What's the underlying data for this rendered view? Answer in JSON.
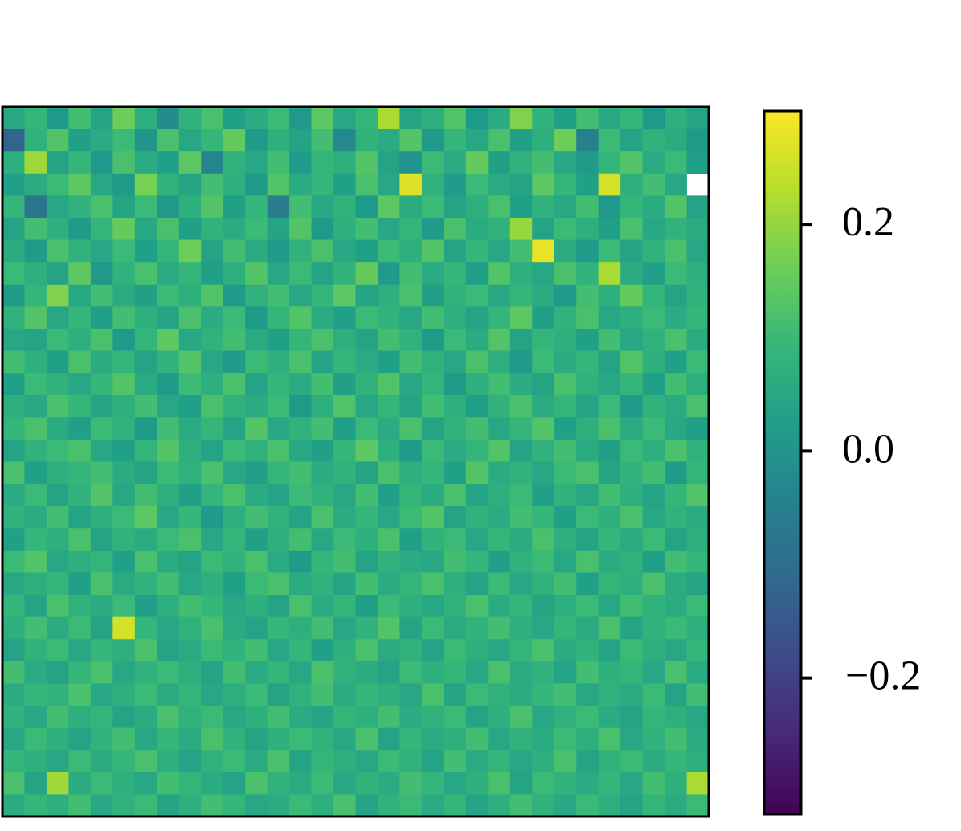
{
  "chart_data": {
    "type": "heatmap",
    "colormap": "viridis",
    "clim": [
      -0.32,
      0.3
    ],
    "colorbar_ticks": [
      0.2,
      {
        "value": 0,
        "label": "0.0"
      },
      {
        "value": -0.2,
        "label": "−0.2"
      }
    ],
    "values": [
      [
        0.05,
        0.09,
        0.02,
        0.11,
        0.04,
        0.16,
        0.07,
        -0.02,
        0.08,
        0.12,
        0.03,
        0.06,
        0.1,
        0.01,
        0.14,
        0.05,
        0.09,
        0.22,
        0.04,
        0.07,
        0.13,
        0.02,
        0.06,
        0.18,
        0.08,
        0.03,
        0.11,
        0.05,
        0.09,
        0.01,
        0.07,
        0.04
      ],
      [
        -0.12,
        0.08,
        0.13,
        0.03,
        0.06,
        0.1,
        0.0,
        0.12,
        0.05,
        0.09,
        0.15,
        0.02,
        0.07,
        0.04,
        0.11,
        -0.03,
        0.08,
        0.06,
        0.13,
        0.01,
        0.09,
        0.05,
        0.12,
        0.03,
        0.07,
        0.16,
        -0.05,
        0.1,
        0.04,
        0.08,
        0.06,
        0.02
      ],
      [
        0.07,
        0.21,
        0.04,
        0.09,
        0.01,
        0.12,
        0.06,
        0.03,
        0.14,
        -0.04,
        0.08,
        0.05,
        0.11,
        0.02,
        0.09,
        0.07,
        0.13,
        0.04,
        0.0,
        0.1,
        0.06,
        0.15,
        0.03,
        0.08,
        0.11,
        0.05,
        0.02,
        0.09,
        0.13,
        0.06,
        0.1,
        0.03
      ],
      [
        0.03,
        0.06,
        0.1,
        0.14,
        0.05,
        0.02,
        0.17,
        0.08,
        0.04,
        0.11,
        0.07,
        0.01,
        0.13,
        0.06,
        0.09,
        0.03,
        0.12,
        0.05,
        0.27,
        0.08,
        0.02,
        0.1,
        0.06,
        0.04,
        0.14,
        0.09,
        0.03,
        0.26,
        0.07,
        0.11,
        0.05,
        null
      ],
      [
        0.09,
        -0.08,
        0.05,
        0.08,
        0.12,
        0.04,
        0.1,
        0.01,
        0.07,
        0.13,
        0.03,
        0.09,
        -0.06,
        0.11,
        0.05,
        0.08,
        0.02,
        0.14,
        0.06,
        0.1,
        0.04,
        0.07,
        0.12,
        0.03,
        0.08,
        0.05,
        0.11,
        0.01,
        0.09,
        0.06,
        0.13,
        0.04
      ],
      [
        0.04,
        0.11,
        0.07,
        0.02,
        0.09,
        0.15,
        0.05,
        0.12,
        0.03,
        0.08,
        0.06,
        0.1,
        0.04,
        0.13,
        0.01,
        0.07,
        0.11,
        0.05,
        0.09,
        0.02,
        0.12,
        0.06,
        0.08,
        0.2,
        0.04,
        0.1,
        0.07,
        0.03,
        0.12,
        0.05,
        0.08,
        0.06
      ],
      [
        0.06,
        0.02,
        0.12,
        0.08,
        0.05,
        0.1,
        0.03,
        0.09,
        0.16,
        0.04,
        0.11,
        0.06,
        0.02,
        0.08,
        0.12,
        0.05,
        0.03,
        0.1,
        0.07,
        0.13,
        0.04,
        0.09,
        0.05,
        0.11,
        0.28,
        0.06,
        0.02,
        0.1,
        0.04,
        0.08,
        0.12,
        0.05
      ],
      [
        0.1,
        0.07,
        0.04,
        0.14,
        0.01,
        0.08,
        0.12,
        0.06,
        0.09,
        0.03,
        0.07,
        0.13,
        0.05,
        0.1,
        0.04,
        0.08,
        0.15,
        0.02,
        0.11,
        0.06,
        0.09,
        0.03,
        0.13,
        0.07,
        0.05,
        0.12,
        0.08,
        0.22,
        0.06,
        0.03,
        0.1,
        0.07
      ],
      [
        0.02,
        0.09,
        0.18,
        0.05,
        0.11,
        0.06,
        0.03,
        0.1,
        0.07,
        0.13,
        0.02,
        0.08,
        0.11,
        0.05,
        0.09,
        0.14,
        0.04,
        0.07,
        0.12,
        0.03,
        0.08,
        0.1,
        0.05,
        0.09,
        0.06,
        0.02,
        0.11,
        0.07,
        0.15,
        0.09,
        0.04,
        0.08
      ],
      [
        0.08,
        0.13,
        0.05,
        0.09,
        0.03,
        0.11,
        0.07,
        0.04,
        0.12,
        0.06,
        0.1,
        0.02,
        0.09,
        0.13,
        0.06,
        0.03,
        0.1,
        0.08,
        0.05,
        0.11,
        0.07,
        0.04,
        0.09,
        0.14,
        0.03,
        0.08,
        0.12,
        0.05,
        0.07,
        0.1,
        0.06,
        0.09
      ],
      [
        0.05,
        0.04,
        0.1,
        0.07,
        0.12,
        0.02,
        0.09,
        0.14,
        0.05,
        0.08,
        0.11,
        0.06,
        0.03,
        0.09,
        0.12,
        0.07,
        0.04,
        0.11,
        0.08,
        0.02,
        0.1,
        0.06,
        0.13,
        0.04,
        0.09,
        0.07,
        0.03,
        0.11,
        0.05,
        0.08,
        0.12,
        0.06
      ],
      [
        0.11,
        0.07,
        0.03,
        0.12,
        0.06,
        0.09,
        0.04,
        0.08,
        0.13,
        0.05,
        0.02,
        0.1,
        0.07,
        0.12,
        0.04,
        0.09,
        0.06,
        0.03,
        0.11,
        0.08,
        0.05,
        0.12,
        0.07,
        0.02,
        0.1,
        0.06,
        0.09,
        0.04,
        0.13,
        0.07,
        0.03,
        0.1
      ],
      [
        0.03,
        0.1,
        0.08,
        0.05,
        0.09,
        0.13,
        0.06,
        0.02,
        0.1,
        0.07,
        0.12,
        0.04,
        0.09,
        0.06,
        0.11,
        0.03,
        0.08,
        0.13,
        0.05,
        0.09,
        0.02,
        0.07,
        0.11,
        0.06,
        0.04,
        0.12,
        0.08,
        0.05,
        0.09,
        0.03,
        0.11,
        0.07
      ],
      [
        0.07,
        0.05,
        0.12,
        0.09,
        0.04,
        0.07,
        0.11,
        0.05,
        0.03,
        0.12,
        0.08,
        0.06,
        0.1,
        0.02,
        0.07,
        0.13,
        0.05,
        0.09,
        0.04,
        0.11,
        0.07,
        0.03,
        0.08,
        0.12,
        0.06,
        0.09,
        0.04,
        0.1,
        0.02,
        0.08,
        0.06,
        0.12
      ],
      [
        0.09,
        0.12,
        0.06,
        0.03,
        0.1,
        0.08,
        0.02,
        0.11,
        0.06,
        0.09,
        0.04,
        0.13,
        0.05,
        0.08,
        0.11,
        0.03,
        0.1,
        0.06,
        0.12,
        0.04,
        0.08,
        0.11,
        0.05,
        0.09,
        0.13,
        0.03,
        0.07,
        0.12,
        0.06,
        0.1,
        0.05,
        0.03
      ],
      [
        0.04,
        0.08,
        0.1,
        0.12,
        0.05,
        0.03,
        0.09,
        0.13,
        0.07,
        0.04,
        0.1,
        0.08,
        0.12,
        0.05,
        0.03,
        0.09,
        0.14,
        0.07,
        0.02,
        0.1,
        0.06,
        0.09,
        0.13,
        0.04,
        0.08,
        0.11,
        0.06,
        0.03,
        0.1,
        0.07,
        0.12,
        0.08
      ],
      [
        0.12,
        0.03,
        0.07,
        0.09,
        0.11,
        0.06,
        0.04,
        0.1,
        0.08,
        0.12,
        0.05,
        0.03,
        0.09,
        0.11,
        0.06,
        0.08,
        0.04,
        0.12,
        0.07,
        0.09,
        0.03,
        0.13,
        0.06,
        0.08,
        0.05,
        0.1,
        0.12,
        0.04,
        0.08,
        0.11,
        0.02,
        0.09
      ],
      [
        0.06,
        0.1,
        0.04,
        0.08,
        0.13,
        0.05,
        0.11,
        0.07,
        0.03,
        0.09,
        0.12,
        0.06,
        0.04,
        0.1,
        0.08,
        0.05,
        0.11,
        0.03,
        0.09,
        0.06,
        0.12,
        0.04,
        0.07,
        0.1,
        0.03,
        0.08,
        0.05,
        0.11,
        0.07,
        0.04,
        0.09,
        0.13
      ],
      [
        0.08,
        0.06,
        0.11,
        0.04,
        0.07,
        0.1,
        0.14,
        0.05,
        0.09,
        0.02,
        0.07,
        0.11,
        0.08,
        0.04,
        0.12,
        0.06,
        0.09,
        0.05,
        0.1,
        0.13,
        0.04,
        0.08,
        0.06,
        0.11,
        0.09,
        0.03,
        0.1,
        0.07,
        0.12,
        0.05,
        0.08,
        0.06
      ],
      [
        0.03,
        0.09,
        0.07,
        0.12,
        0.04,
        0.08,
        0.06,
        0.1,
        0.12,
        0.05,
        0.09,
        0.03,
        0.07,
        0.11,
        0.05,
        0.1,
        0.07,
        0.12,
        0.03,
        0.08,
        0.1,
        0.05,
        0.09,
        0.06,
        0.12,
        0.07,
        0.04,
        0.09,
        0.06,
        0.1,
        0.04,
        0.07
      ],
      [
        0.1,
        0.13,
        0.05,
        0.07,
        0.09,
        0.03,
        0.12,
        0.06,
        0.04,
        0.1,
        0.08,
        0.12,
        0.06,
        0.02,
        0.09,
        0.11,
        0.04,
        0.08,
        0.06,
        0.05,
        0.11,
        0.09,
        0.03,
        0.08,
        0.1,
        0.05,
        0.12,
        0.06,
        0.08,
        0.03,
        0.11,
        0.09
      ],
      [
        0.05,
        0.07,
        0.09,
        0.03,
        0.12,
        0.06,
        0.08,
        0.11,
        0.05,
        0.07,
        0.03,
        0.1,
        0.12,
        0.06,
        0.08,
        0.04,
        0.11,
        0.06,
        0.09,
        0.12,
        0.07,
        0.04,
        0.1,
        0.05,
        0.08,
        0.11,
        0.03,
        0.09,
        0.07,
        0.12,
        0.06,
        0.04
      ],
      [
        0.09,
        0.04,
        0.12,
        0.08,
        0.06,
        0.1,
        0.03,
        0.07,
        0.11,
        0.09,
        0.05,
        0.07,
        0.04,
        0.12,
        0.06,
        0.09,
        0.03,
        0.1,
        0.07,
        0.05,
        0.08,
        0.12,
        0.06,
        0.09,
        0.04,
        0.07,
        0.1,
        0.05,
        0.11,
        0.08,
        0.06,
        0.1
      ],
      [
        0.07,
        0.11,
        0.06,
        0.1,
        0.04,
        0.26,
        0.09,
        0.05,
        0.08,
        0.12,
        0.06,
        0.04,
        0.09,
        0.07,
        0.11,
        0.05,
        0.08,
        0.13,
        0.04,
        0.1,
        0.06,
        0.08,
        0.11,
        0.07,
        0.05,
        0.09,
        0.06,
        0.12,
        0.04,
        0.08,
        0.1,
        0.07
      ],
      [
        0.04,
        0.08,
        0.1,
        0.05,
        0.09,
        0.07,
        0.12,
        0.04,
        0.06,
        0.1,
        0.08,
        0.11,
        0.05,
        0.09,
        0.03,
        0.07,
        0.12,
        0.06,
        0.08,
        0.04,
        0.1,
        0.07,
        0.05,
        0.09,
        0.12,
        0.06,
        0.08,
        0.04,
        0.1,
        0.07,
        0.05,
        0.09
      ],
      [
        0.11,
        0.06,
        0.04,
        0.09,
        0.12,
        0.05,
        0.08,
        0.1,
        0.07,
        0.04,
        0.11,
        0.06,
        0.09,
        0.05,
        0.12,
        0.08,
        0.06,
        0.04,
        0.1,
        0.07,
        0.09,
        0.05,
        0.12,
        0.06,
        0.08,
        0.04,
        0.11,
        0.07,
        0.09,
        0.05,
        0.12,
        0.06
      ],
      [
        0.06,
        0.09,
        0.08,
        0.12,
        0.05,
        0.07,
        0.1,
        0.06,
        0.09,
        0.05,
        0.07,
        0.1,
        0.04,
        0.08,
        0.11,
        0.06,
        0.09,
        0.07,
        0.05,
        0.12,
        0.04,
        0.1,
        0.08,
        0.06,
        0.09,
        0.11,
        0.05,
        0.08,
        0.06,
        0.1,
        0.04,
        0.11
      ],
      [
        0.08,
        0.05,
        0.11,
        0.07,
        0.09,
        0.04,
        0.06,
        0.12,
        0.08,
        0.1,
        0.05,
        0.07,
        0.11,
        0.06,
        0.04,
        0.09,
        0.07,
        0.11,
        0.06,
        0.08,
        0.1,
        0.04,
        0.07,
        0.12,
        0.05,
        0.08,
        0.1,
        0.06,
        0.04,
        0.09,
        0.07,
        0.05
      ],
      [
        0.05,
        0.1,
        0.07,
        0.04,
        0.08,
        0.11,
        0.05,
        0.09,
        0.06,
        0.12,
        0.08,
        0.04,
        0.07,
        0.1,
        0.08,
        0.05,
        0.12,
        0.04,
        0.09,
        0.06,
        0.07,
        0.11,
        0.05,
        0.08,
        0.06,
        0.1,
        0.07,
        0.12,
        0.05,
        0.08,
        0.11,
        0.06
      ],
      [
        0.09,
        0.07,
        0.05,
        0.1,
        0.06,
        0.09,
        0.12,
        0.07,
        0.04,
        0.08,
        0.1,
        0.06,
        0.12,
        0.04,
        0.09,
        0.07,
        0.05,
        0.1,
        0.08,
        0.04,
        0.11,
        0.06,
        0.09,
        0.05,
        0.07,
        0.12,
        0.04,
        0.08,
        0.1,
        0.06,
        0.09,
        0.07
      ],
      [
        0.12,
        0.04,
        0.21,
        0.06,
        0.1,
        0.07,
        0.05,
        0.11,
        0.09,
        0.06,
        0.04,
        0.12,
        0.08,
        0.06,
        0.1,
        0.05,
        0.08,
        0.06,
        0.11,
        0.09,
        0.05,
        0.07,
        0.12,
        0.04,
        0.1,
        0.08,
        0.06,
        0.09,
        0.05,
        0.11,
        0.07,
        0.22
      ],
      [
        0.06,
        0.09,
        0.07,
        0.11,
        0.05,
        0.08,
        0.1,
        0.04,
        0.07,
        0.11,
        0.09,
        0.05,
        0.06,
        0.1,
        0.07,
        0.12,
        0.04,
        0.08,
        0.1,
        0.06,
        0.09,
        0.04,
        0.07,
        0.11,
        0.08,
        0.05,
        0.1,
        0.07,
        0.04,
        0.09,
        0.06,
        0.1
      ]
    ]
  }
}
